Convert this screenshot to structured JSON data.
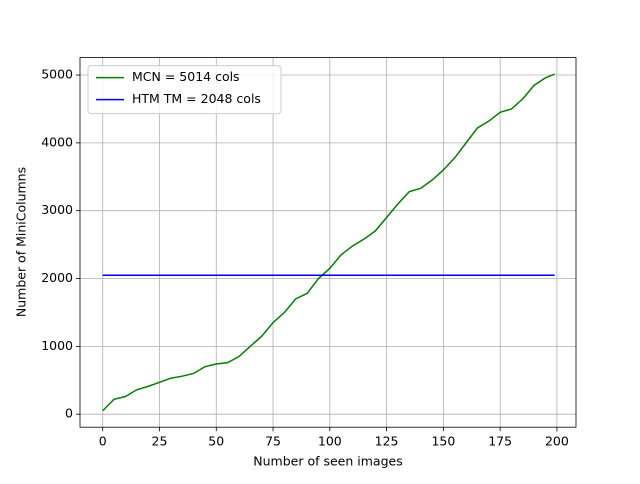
{
  "chart_data": {
    "type": "line",
    "xlabel": "Number of seen images",
    "ylabel": "Number of MiniColumns",
    "xlim": [
      -10,
      208.4
    ],
    "ylim": [
      -192,
      5257
    ],
    "xticks": [
      0,
      25,
      50,
      75,
      100,
      125,
      150,
      175,
      200
    ],
    "yticks": [
      0,
      1000,
      2000,
      3000,
      4000,
      5000
    ],
    "grid": true,
    "legend": "upper-left",
    "series": [
      {
        "name": "MCN = 5014 cols",
        "color": "#008000",
        "x": [
          0,
          5,
          10,
          15,
          20,
          25,
          30,
          35,
          40,
          45,
          50,
          55,
          60,
          65,
          70,
          75,
          80,
          85,
          90,
          95,
          100,
          105,
          110,
          115,
          120,
          125,
          130,
          135,
          140,
          145,
          150,
          155,
          160,
          165,
          170,
          175,
          180,
          185,
          190,
          195,
          199
        ],
        "values": [
          50,
          220,
          260,
          360,
          410,
          470,
          530,
          560,
          600,
          700,
          740,
          760,
          850,
          1000,
          1150,
          1350,
          1500,
          1700,
          1780,
          2000,
          2150,
          2350,
          2480,
          2580,
          2700,
          2900,
          3100,
          3280,
          3330,
          3450,
          3600,
          3780,
          4000,
          4220,
          4320,
          4450,
          4500,
          4650,
          4850,
          4960,
          5014
        ]
      },
      {
        "name": "HTM TM = 2048 cols",
        "color": "#0000ff",
        "x": [
          0,
          199
        ],
        "values": [
          2048,
          2048
        ]
      }
    ]
  }
}
